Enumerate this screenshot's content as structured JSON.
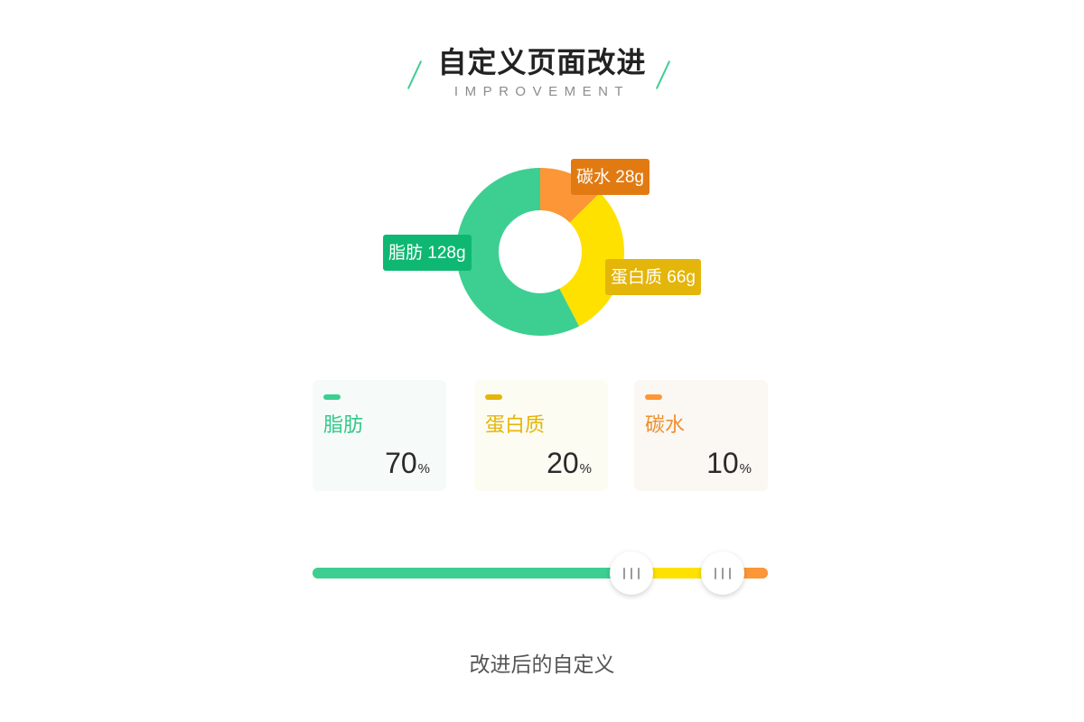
{
  "header": {
    "title": "自定义页面改进",
    "subtitle": "IMPROVEMENT"
  },
  "chart_data": {
    "type": "pie",
    "series": [
      {
        "name": "脂肪",
        "value": 128,
        "label": "脂肪 128g",
        "color": "#3ccf91",
        "label_color": "#0fb872"
      },
      {
        "name": "蛋白质",
        "value": 66,
        "label": "蛋白质 66g",
        "color": "#ffe100",
        "label_color": "#e4b50a"
      },
      {
        "name": "碳水",
        "value": 28,
        "label": "碳水 28g",
        "color": "#fc9637",
        "label_color": "#e27a12"
      }
    ]
  },
  "cards": [
    {
      "name": "脂肪",
      "value": "70",
      "unit": "%"
    },
    {
      "name": "蛋白质",
      "value": "20",
      "unit": "%"
    },
    {
      "name": "碳水",
      "value": "10",
      "unit": "%"
    }
  ],
  "slider": {
    "fat_percent": 70,
    "protein_percent": 20,
    "carb_percent": 10
  },
  "caption": "改进后的自定义"
}
